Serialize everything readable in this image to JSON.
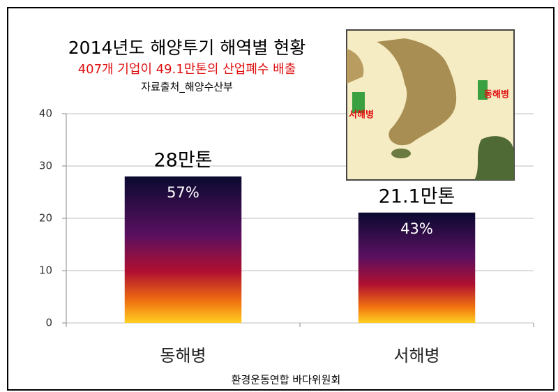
{
  "chart_data": {
    "type": "bar",
    "title": "2014년도 해양투기 해역별 현황",
    "subtitle": "407개 기업이 49.1만톤의 산업폐수 배출",
    "source": "자료출처_해양수산부",
    "footer": "환경운동연합 바다위원회",
    "map_labels": [
      "서해병",
      "동해병"
    ],
    "categories": [
      "동해병",
      "서해병"
    ],
    "values": [
      28,
      21.1
    ],
    "value_labels": [
      "28만톤",
      "21.1만톤"
    ],
    "share_labels": [
      "57%",
      "43%"
    ],
    "colors": [
      "#0a0a30",
      "#5a1060",
      "#b01030",
      "#f07010",
      "#ffd020"
    ],
    "ylim": [
      0,
      40
    ],
    "yticks": [
      0,
      10,
      20,
      30,
      40
    ],
    "grid": true
  }
}
